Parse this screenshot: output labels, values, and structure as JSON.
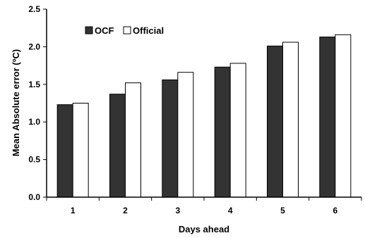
{
  "chart_data": {
    "type": "bar",
    "title": "",
    "xlabel": "Days ahead",
    "ylabel": "Mean Absolute error (ºC)",
    "categories": [
      "1",
      "2",
      "3",
      "4",
      "5",
      "6"
    ],
    "series": [
      {
        "name": "OCF",
        "color": "#333333",
        "values": [
          1.23,
          1.37,
          1.56,
          1.73,
          2.01,
          2.13
        ]
      },
      {
        "name": "Official",
        "color": "#ffffff",
        "values": [
          1.25,
          1.52,
          1.66,
          1.78,
          2.06,
          2.16
        ]
      }
    ],
    "ylim": [
      0,
      2.5
    ],
    "yticks": [
      "0.0",
      "0.5",
      "1.0",
      "1.5",
      "2.0",
      "2.5"
    ],
    "grid": false,
    "legend_position": "top-left"
  }
}
